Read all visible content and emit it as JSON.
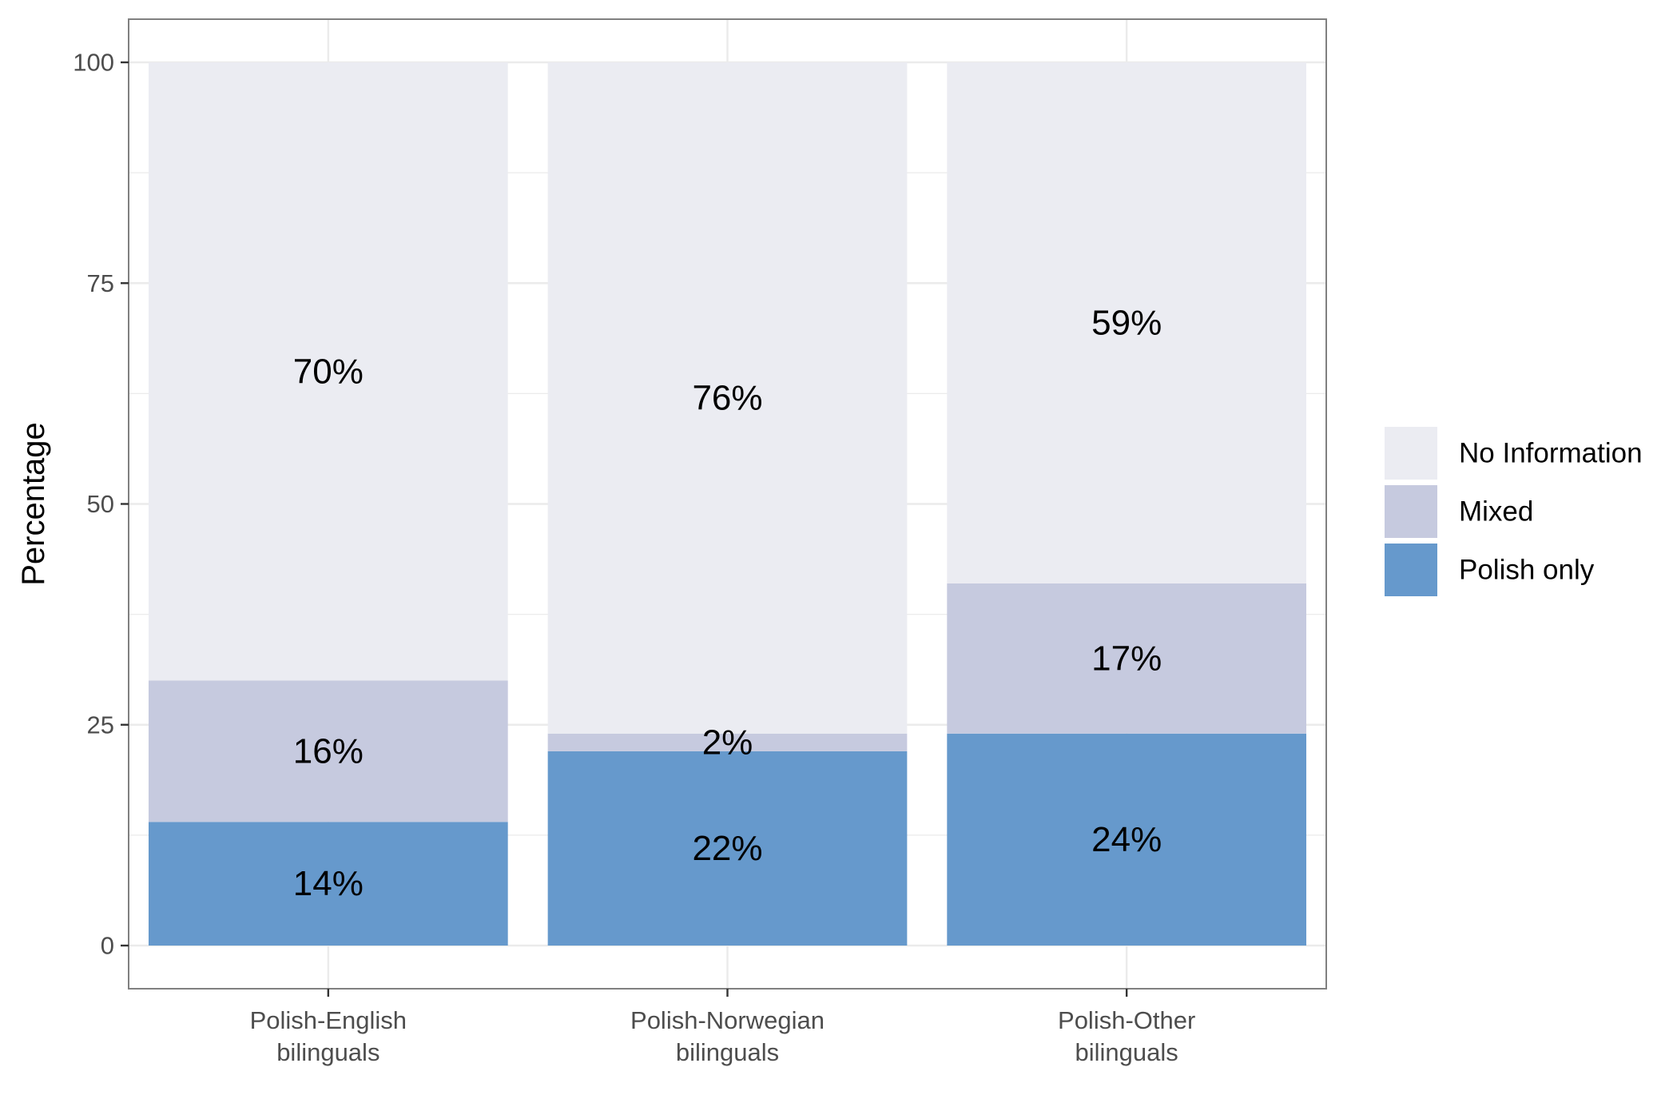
{
  "chart_data": {
    "type": "bar",
    "stacked": true,
    "ylabel": "Percentage",
    "xlabel": "",
    "ylim": [
      0,
      100
    ],
    "yticks": [
      0,
      25,
      50,
      75,
      100
    ],
    "grid": true,
    "legend_position": "right",
    "categories": [
      [
        "Polish-English",
        "bilinguals"
      ],
      [
        "Polish-Norwegian",
        "bilinguals"
      ],
      [
        "Polish-Other",
        "bilinguals"
      ]
    ],
    "series": [
      {
        "name": "Polish only",
        "color": "#6699cc",
        "values": [
          14,
          22,
          24
        ],
        "labels": [
          "14%",
          "22%",
          "24%"
        ]
      },
      {
        "name": "Mixed",
        "color": "#c6cadf",
        "values": [
          16,
          2,
          17
        ],
        "labels": [
          "16%",
          "2%",
          "17%"
        ]
      },
      {
        "name": "No Information",
        "color": "#ebecf2",
        "values": [
          70,
          76,
          59
        ],
        "labels": [
          "70%",
          "76%",
          "59%"
        ]
      }
    ],
    "legend_order": [
      "No Information",
      "Mixed",
      "Polish only"
    ]
  }
}
